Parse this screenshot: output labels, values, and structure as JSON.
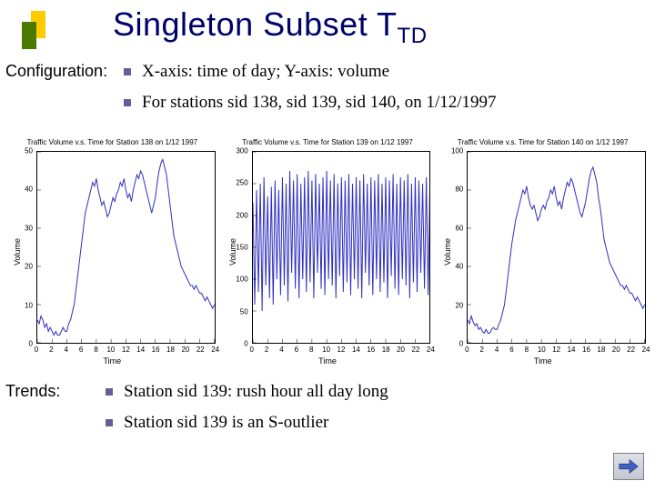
{
  "title_main": "Singleton Subset T",
  "title_sub": "TD",
  "config_label": "Configuration:",
  "config_bullets": [
    "X-axis: time of day; Y-axis: volume",
    "For stations sid 138, sid 139, sid 140, on 1/12/1997"
  ],
  "trends_label": "Trends:",
  "trends_bullets": [
    "Station sid 139: rush hour all day long",
    "Station sid 139 is an S-outlier"
  ],
  "colors": {
    "title": "#00006a",
    "bullet_square": "#606098",
    "deco_green": "#4a7a00",
    "deco_yellow": "#ffcc00",
    "line": "#3030c0",
    "axis": "#000000",
    "background": "#ffffff"
  },
  "charts": [
    {
      "title": "Traffic Volume v.s. Time for Station 138 on 1/12 1997",
      "xlabel": "Time",
      "ylabel": "Volume",
      "xlim": [
        0,
        24
      ],
      "xtick_step": 2,
      "ylim": [
        0,
        50
      ],
      "ytick_step": 10,
      "line_color": "#3030c0",
      "line_width": 1,
      "series": [
        [
          0,
          6
        ],
        [
          0.25,
          5
        ],
        [
          0.5,
          7
        ],
        [
          0.75,
          6
        ],
        [
          1,
          4
        ],
        [
          1.25,
          5
        ],
        [
          1.5,
          3
        ],
        [
          1.75,
          4
        ],
        [
          2,
          3
        ],
        [
          2.25,
          2
        ],
        [
          2.5,
          3
        ],
        [
          2.75,
          2
        ],
        [
          3,
          2
        ],
        [
          3.25,
          3
        ],
        [
          3.5,
          4
        ],
        [
          3.75,
          3
        ],
        [
          4,
          3
        ],
        [
          4.25,
          5
        ],
        [
          4.5,
          6
        ],
        [
          4.75,
          8
        ],
        [
          5,
          10
        ],
        [
          5.25,
          14
        ],
        [
          5.5,
          18
        ],
        [
          5.75,
          22
        ],
        [
          6,
          26
        ],
        [
          6.25,
          30
        ],
        [
          6.5,
          34
        ],
        [
          6.75,
          36
        ],
        [
          7,
          38
        ],
        [
          7.25,
          40
        ],
        [
          7.5,
          42
        ],
        [
          7.75,
          41
        ],
        [
          8,
          43
        ],
        [
          8.25,
          40
        ],
        [
          8.5,
          38
        ],
        [
          8.75,
          36
        ],
        [
          9,
          37
        ],
        [
          9.25,
          35
        ],
        [
          9.5,
          33
        ],
        [
          9.75,
          34
        ],
        [
          10,
          36
        ],
        [
          10.25,
          38
        ],
        [
          10.5,
          37
        ],
        [
          10.75,
          39
        ],
        [
          11,
          40
        ],
        [
          11.25,
          42
        ],
        [
          11.5,
          41
        ],
        [
          11.75,
          43
        ],
        [
          12,
          40
        ],
        [
          12.25,
          38
        ],
        [
          12.5,
          39
        ],
        [
          12.75,
          37
        ],
        [
          13,
          40
        ],
        [
          13.25,
          42
        ],
        [
          13.5,
          44
        ],
        [
          13.75,
          43
        ],
        [
          14,
          45
        ],
        [
          14.25,
          44
        ],
        [
          14.5,
          42
        ],
        [
          14.75,
          40
        ],
        [
          15,
          38
        ],
        [
          15.25,
          36
        ],
        [
          15.5,
          34
        ],
        [
          15.75,
          36
        ],
        [
          16,
          38
        ],
        [
          16.25,
          42
        ],
        [
          16.5,
          45
        ],
        [
          16.75,
          47
        ],
        [
          17,
          48
        ],
        [
          17.25,
          46
        ],
        [
          17.5,
          44
        ],
        [
          17.75,
          40
        ],
        [
          18,
          36
        ],
        [
          18.25,
          32
        ],
        [
          18.5,
          28
        ],
        [
          18.75,
          26
        ],
        [
          19,
          24
        ],
        [
          19.25,
          22
        ],
        [
          19.5,
          20
        ],
        [
          19.75,
          19
        ],
        [
          20,
          18
        ],
        [
          20.25,
          17
        ],
        [
          20.5,
          16
        ],
        [
          20.75,
          15
        ],
        [
          21,
          15
        ],
        [
          21.25,
          14
        ],
        [
          21.5,
          15
        ],
        [
          21.75,
          14
        ],
        [
          22,
          13
        ],
        [
          22.25,
          13
        ],
        [
          22.5,
          12
        ],
        [
          22.75,
          11
        ],
        [
          23,
          12
        ],
        [
          23.25,
          11
        ],
        [
          23.5,
          10
        ],
        [
          23.75,
          9
        ],
        [
          24,
          10
        ]
      ]
    },
    {
      "title": "Traffic Volume v.s. Time for Station 139 on 1/12 1997",
      "xlabel": "Time",
      "ylabel": "Volume",
      "xlim": [
        0,
        24
      ],
      "xtick_step": 2,
      "ylim": [
        0,
        300
      ],
      "ytick_step": 50,
      "line_color": "#3030c0",
      "line_width": 1,
      "series": [
        [
          0,
          220
        ],
        [
          0.25,
          60
        ],
        [
          0.5,
          240
        ],
        [
          0.75,
          80
        ],
        [
          1,
          250
        ],
        [
          1.25,
          50
        ],
        [
          1.5,
          260
        ],
        [
          1.75,
          90
        ],
        [
          2,
          230
        ],
        [
          2.25,
          70
        ],
        [
          2.5,
          245
        ],
        [
          2.75,
          60
        ],
        [
          3,
          255
        ],
        [
          3.25,
          100
        ],
        [
          3.5,
          240
        ],
        [
          3.75,
          75
        ],
        [
          4,
          260
        ],
        [
          4.25,
          90
        ],
        [
          4.5,
          250
        ],
        [
          4.75,
          65
        ],
        [
          5,
          270
        ],
        [
          5.25,
          110
        ],
        [
          5.5,
          255
        ],
        [
          5.75,
          85
        ],
        [
          6,
          265
        ],
        [
          6.25,
          70
        ],
        [
          6.5,
          250
        ],
        [
          6.75,
          100
        ],
        [
          7,
          260
        ],
        [
          7.25,
          80
        ],
        [
          7.5,
          270
        ],
        [
          7.75,
          95
        ],
        [
          8,
          255
        ],
        [
          8.25,
          70
        ],
        [
          8.5,
          265
        ],
        [
          8.75,
          110
        ],
        [
          9,
          250
        ],
        [
          9.25,
          85
        ],
        [
          9.5,
          260
        ],
        [
          9.75,
          75
        ],
        [
          10,
          270
        ],
        [
          10.25,
          100
        ],
        [
          10.5,
          255
        ],
        [
          10.75,
          90
        ],
        [
          11,
          265
        ],
        [
          11.25,
          70
        ],
        [
          11.5,
          250
        ],
        [
          11.75,
          105
        ],
        [
          12,
          260
        ],
        [
          12.25,
          80
        ],
        [
          12.5,
          255
        ],
        [
          12.75,
          95
        ],
        [
          13,
          265
        ],
        [
          13.25,
          75
        ],
        [
          13.5,
          250
        ],
        [
          13.75,
          100
        ],
        [
          14,
          260
        ],
        [
          14.25,
          85
        ],
        [
          14.5,
          255
        ],
        [
          14.75,
          70
        ],
        [
          15,
          265
        ],
        [
          15.25,
          110
        ],
        [
          15.5,
          250
        ],
        [
          15.75,
          90
        ],
        [
          16,
          260
        ],
        [
          16.25,
          75
        ],
        [
          16.5,
          255
        ],
        [
          16.75,
          100
        ],
        [
          17,
          265
        ],
        [
          17.25,
          80
        ],
        [
          17.5,
          250
        ],
        [
          17.75,
          95
        ],
        [
          18,
          260
        ],
        [
          18.25,
          70
        ],
        [
          18.5,
          255
        ],
        [
          18.75,
          105
        ],
        [
          19,
          265
        ],
        [
          19.25,
          85
        ],
        [
          19.5,
          250
        ],
        [
          19.75,
          75
        ],
        [
          20,
          260
        ],
        [
          20.25,
          100
        ],
        [
          20.5,
          255
        ],
        [
          20.75,
          90
        ],
        [
          21,
          265
        ],
        [
          21.25,
          70
        ],
        [
          21.5,
          250
        ],
        [
          21.75,
          95
        ],
        [
          22,
          260
        ],
        [
          22.25,
          80
        ],
        [
          22.5,
          255
        ],
        [
          22.75,
          110
        ],
        [
          23,
          250
        ],
        [
          23.25,
          85
        ],
        [
          23.5,
          260
        ],
        [
          23.75,
          75
        ],
        [
          24,
          255
        ]
      ]
    },
    {
      "title": "Traffic Volume v.s. Time for Station 140 on 1/12 1997",
      "xlabel": "Time",
      "ylabel": "Volume",
      "xlim": [
        0,
        24
      ],
      "xtick_step": 2,
      "ylim": [
        0,
        100
      ],
      "ytick_step": 20,
      "line_color": "#3030c0",
      "line_width": 1,
      "series": [
        [
          0,
          12
        ],
        [
          0.25,
          10
        ],
        [
          0.5,
          14
        ],
        [
          0.75,
          11
        ],
        [
          1,
          9
        ],
        [
          1.25,
          10
        ],
        [
          1.5,
          7
        ],
        [
          1.75,
          8
        ],
        [
          2,
          6
        ],
        [
          2.25,
          5
        ],
        [
          2.5,
          7
        ],
        [
          2.75,
          5
        ],
        [
          3,
          5
        ],
        [
          3.25,
          7
        ],
        [
          3.5,
          8
        ],
        [
          3.75,
          7
        ],
        [
          4,
          7
        ],
        [
          4.25,
          10
        ],
        [
          4.5,
          12
        ],
        [
          4.75,
          16
        ],
        [
          5,
          20
        ],
        [
          5.25,
          28
        ],
        [
          5.5,
          36
        ],
        [
          5.75,
          44
        ],
        [
          6,
          52
        ],
        [
          6.25,
          58
        ],
        [
          6.5,
          64
        ],
        [
          6.75,
          68
        ],
        [
          7,
          72
        ],
        [
          7.25,
          76
        ],
        [
          7.5,
          80
        ],
        [
          7.75,
          78
        ],
        [
          8,
          82
        ],
        [
          8.25,
          76
        ],
        [
          8.5,
          72
        ],
        [
          8.75,
          70
        ],
        [
          9,
          72
        ],
        [
          9.25,
          68
        ],
        [
          9.5,
          64
        ],
        [
          9.75,
          66
        ],
        [
          10,
          70
        ],
        [
          10.25,
          72
        ],
        [
          10.5,
          70
        ],
        [
          10.75,
          74
        ],
        [
          11,
          76
        ],
        [
          11.25,
          80
        ],
        [
          11.5,
          78
        ],
        [
          11.75,
          82
        ],
        [
          12,
          76
        ],
        [
          12.25,
          72
        ],
        [
          12.5,
          74
        ],
        [
          12.75,
          70
        ],
        [
          13,
          76
        ],
        [
          13.25,
          80
        ],
        [
          13.5,
          84
        ],
        [
          13.75,
          82
        ],
        [
          14,
          86
        ],
        [
          14.25,
          84
        ],
        [
          14.5,
          80
        ],
        [
          14.75,
          76
        ],
        [
          15,
          72
        ],
        [
          15.25,
          68
        ],
        [
          15.5,
          66
        ],
        [
          15.75,
          70
        ],
        [
          16,
          74
        ],
        [
          16.25,
          80
        ],
        [
          16.5,
          86
        ],
        [
          16.75,
          90
        ],
        [
          17,
          92
        ],
        [
          17.25,
          88
        ],
        [
          17.5,
          84
        ],
        [
          17.75,
          76
        ],
        [
          18,
          70
        ],
        [
          18.25,
          62
        ],
        [
          18.5,
          54
        ],
        [
          18.75,
          50
        ],
        [
          19,
          46
        ],
        [
          19.25,
          42
        ],
        [
          19.5,
          40
        ],
        [
          19.75,
          38
        ],
        [
          20,
          36
        ],
        [
          20.25,
          34
        ],
        [
          20.5,
          32
        ],
        [
          20.75,
          30
        ],
        [
          21,
          30
        ],
        [
          21.25,
          28
        ],
        [
          21.5,
          30
        ],
        [
          21.75,
          28
        ],
        [
          22,
          26
        ],
        [
          22.25,
          26
        ],
        [
          22.5,
          24
        ],
        [
          22.75,
          22
        ],
        [
          23,
          24
        ],
        [
          23.25,
          22
        ],
        [
          23.5,
          20
        ],
        [
          23.75,
          18
        ],
        [
          24,
          20
        ]
      ]
    }
  ]
}
